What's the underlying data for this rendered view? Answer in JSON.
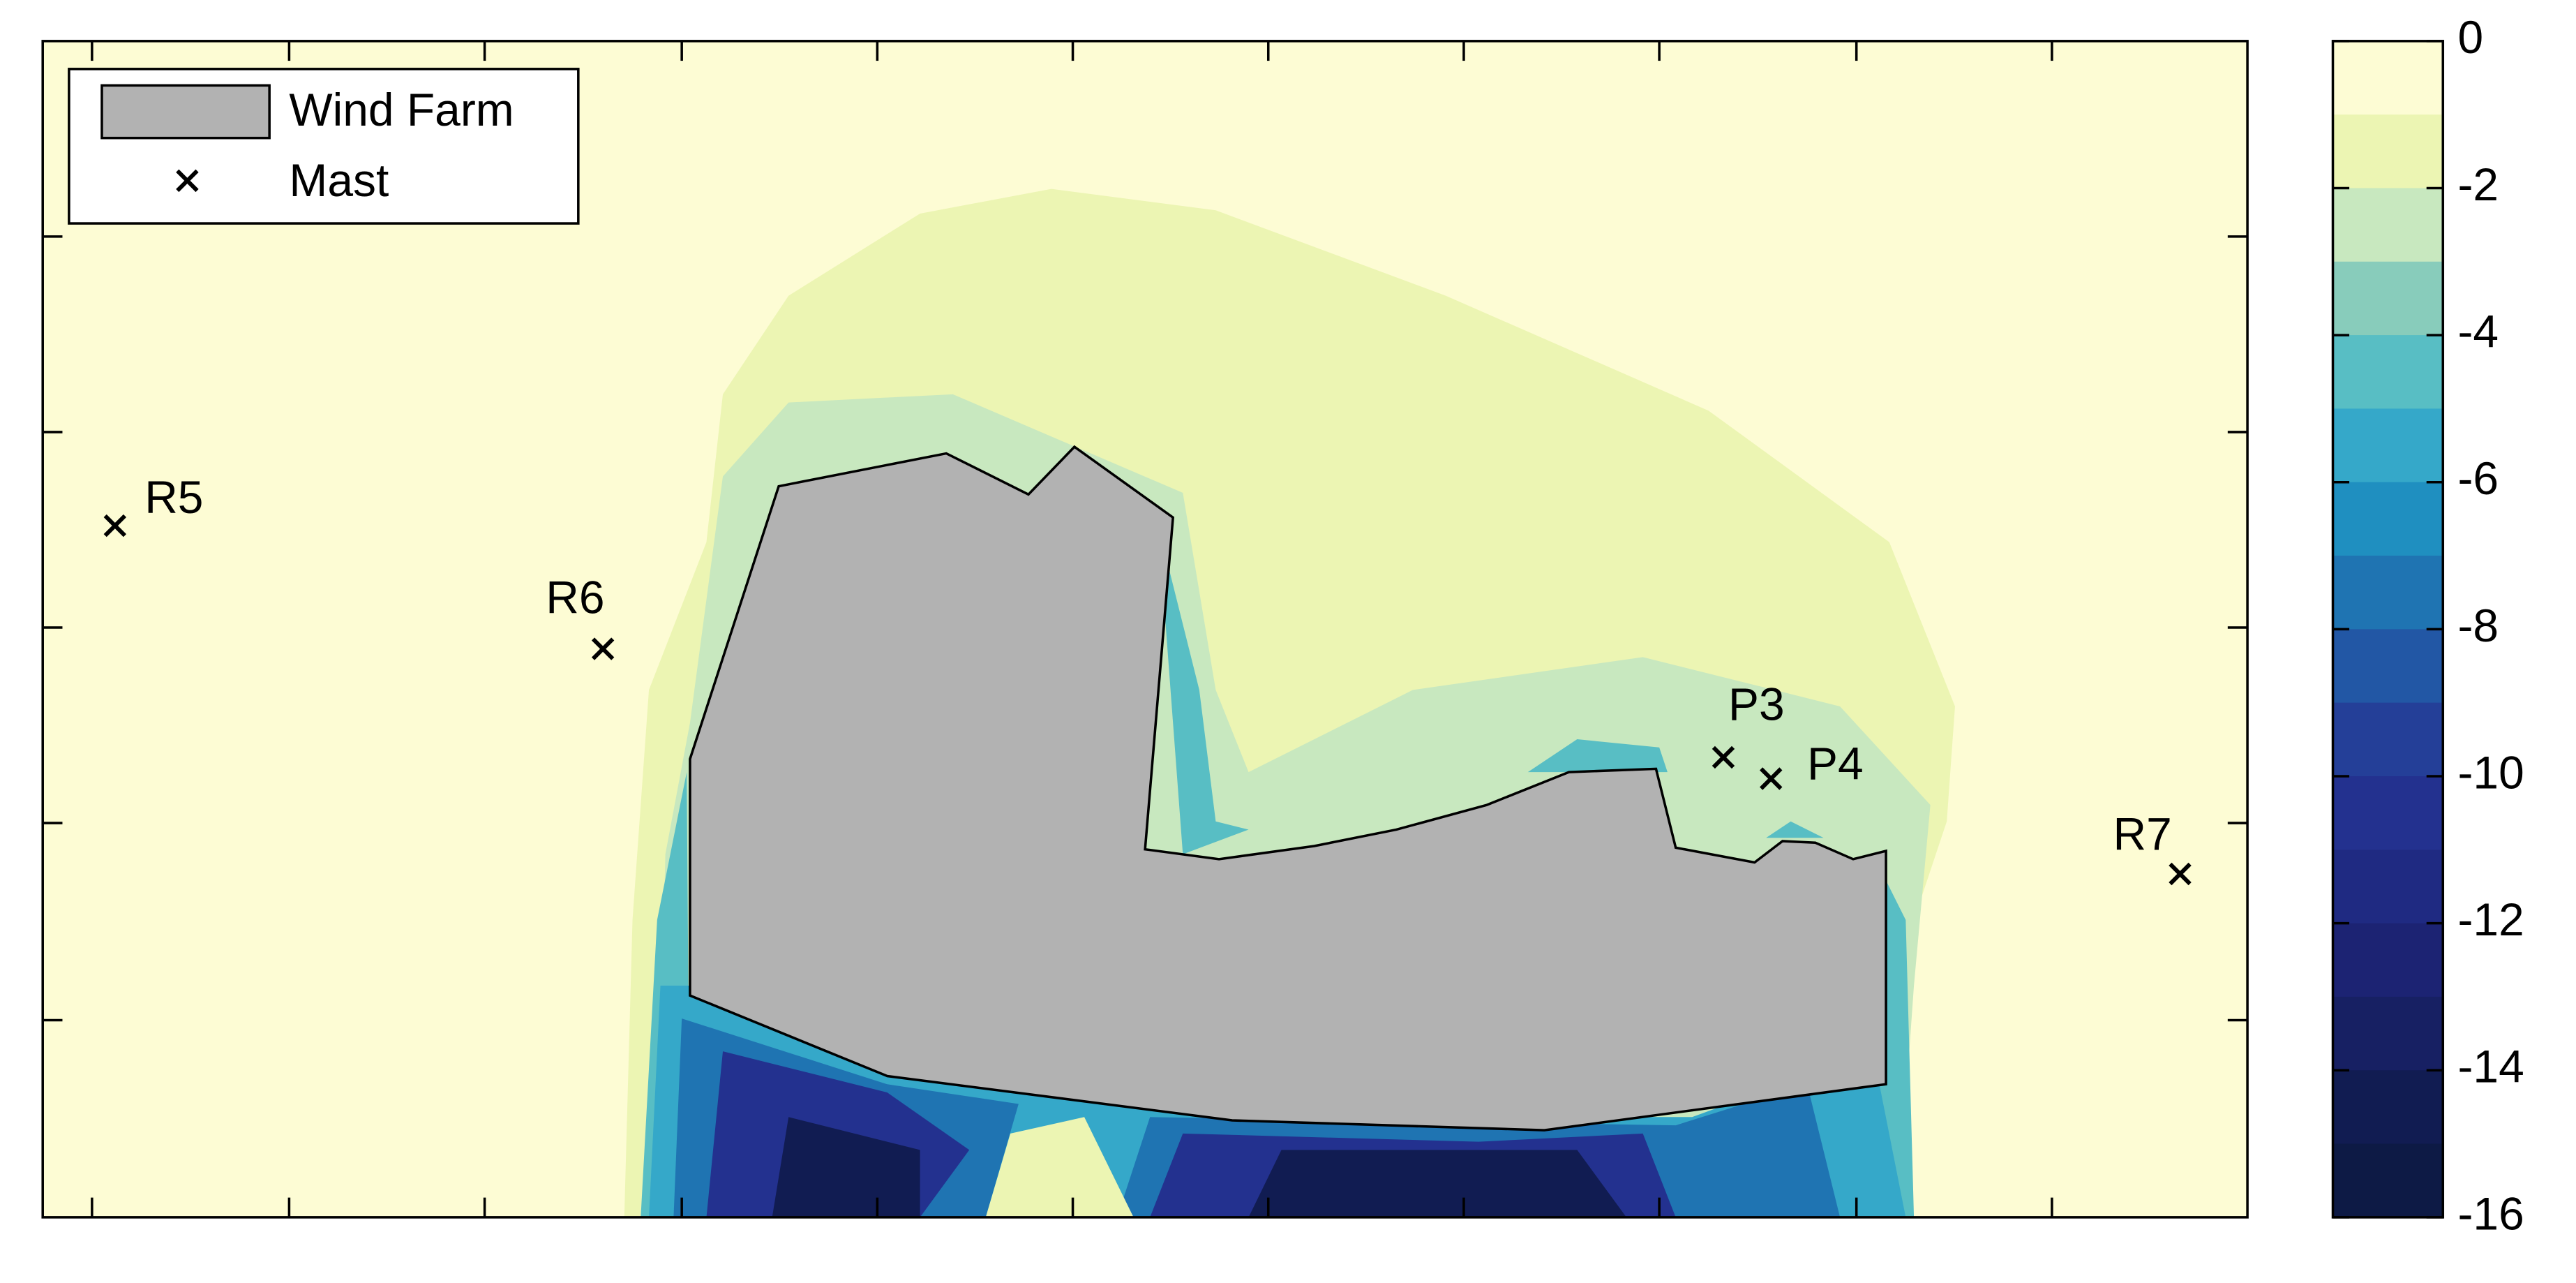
{
  "chart_data": {
    "type": "contour",
    "legend": {
      "entries": [
        "Wind Farm",
        "Mast"
      ],
      "corner": "upper left"
    },
    "masts": [
      "R5",
      "R6",
      "P3",
      "P4",
      "R7"
    ],
    "colorbar": {
      "lim": [
        -16,
        0
      ],
      "ticks": [
        0,
        -2,
        -4,
        -6,
        -8,
        -10,
        -12,
        -14,
        -16
      ],
      "colors": [
        "#fdfcd4",
        "#ecf5b3",
        "#c8e8bf",
        "#88ccbb",
        "#58bec4",
        "#35a8c9",
        "#1f8fc0",
        "#1f74b2",
        "#2257a5",
        "#243f98",
        "#23318f",
        "#1f2a82",
        "#1c2373",
        "#172063",
        "#111c52",
        "#0d1a45"
      ]
    }
  }
}
